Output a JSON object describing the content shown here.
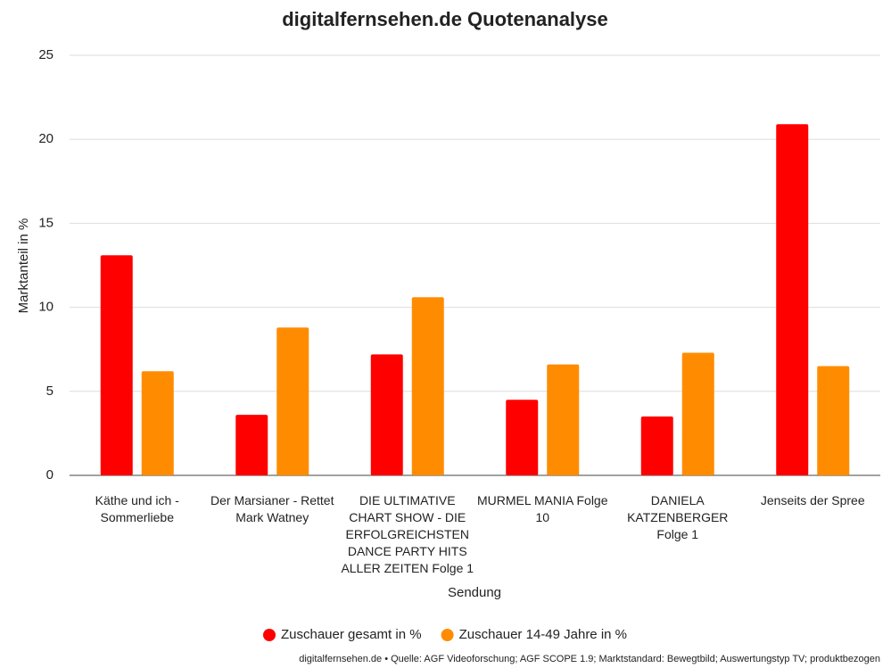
{
  "chart_data": {
    "type": "bar",
    "title": "digitalfernsehen.de Quotenanalyse",
    "x_label": "Sendung",
    "y_label": "Marktanteil in %",
    "source": "digitalfernsehen.de • Quelle: AGF Videoforschung; AGF SCOPE 1.9; Marktstandard: Bewegtbild; Auswertungstyp TV; produktbezogen",
    "categories": [
      "Käthe und ich - Sommerliebe",
      "Der Marsianer - Rettet Mark Watney",
      "DIE ULTIMATIVE CHART SHOW - DIE ERFOLGREICHSTEN DANCE PARTY HITS ALLER ZEITEN Folge 1",
      "MURMEL MANIA Folge 10",
      "DANIELA KATZENBERGER Folge 1",
      "Jenseits der Spree"
    ],
    "series": [
      {
        "name": "Zuschauer gesamt in %",
        "color": "#ff0000",
        "values": [
          13.1,
          3.6,
          7.2,
          4.5,
          3.5,
          20.9
        ]
      },
      {
        "name": "Zuschauer 14-49 Jahre in %",
        "color": "#ff8c00",
        "values": [
          6.2,
          8.8,
          10.6,
          6.6,
          7.3,
          6.5
        ]
      }
    ],
    "ylim": [
      0,
      25
    ],
    "yticks": [
      0,
      5,
      10,
      15,
      20,
      25
    ],
    "grid": true,
    "legend": "bottom"
  }
}
